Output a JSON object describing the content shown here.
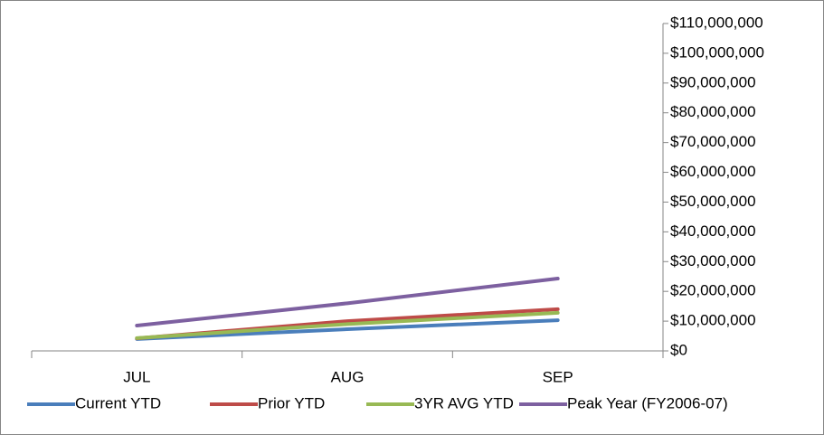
{
  "chart_data": {
    "type": "line",
    "categories": [
      "JUL",
      "AUG",
      "SEP"
    ],
    "series": [
      {
        "name": "Current YTD",
        "color": "#4a7ebb",
        "values": [
          4000000,
          7300000,
          10300000
        ]
      },
      {
        "name": "Prior YTD",
        "color": "#be4b48",
        "values": [
          4200000,
          10000000,
          14000000
        ]
      },
      {
        "name": "3YR AVG YTD",
        "color": "#98b954",
        "values": [
          4300000,
          9000000,
          12800000
        ]
      },
      {
        "name": "Peak Year (FY2006-07)",
        "color": "#7d60a0",
        "values": [
          8500000,
          16000000,
          24300000
        ]
      }
    ],
    "ylim": [
      0,
      110000000
    ],
    "yticks": [
      {
        "value": 0,
        "label": "$0"
      },
      {
        "value": 10000000,
        "label": "$10,000,000"
      },
      {
        "value": 20000000,
        "label": "$20,000,000"
      },
      {
        "value": 30000000,
        "label": "$30,000,000"
      },
      {
        "value": 40000000,
        "label": "$40,000,000"
      },
      {
        "value": 50000000,
        "label": "$50,000,000"
      },
      {
        "value": 60000000,
        "label": "$60,000,000"
      },
      {
        "value": 70000000,
        "label": "$70,000,000"
      },
      {
        "value": 80000000,
        "label": "$80,000,000"
      },
      {
        "value": 90000000,
        "label": "$90,000,000"
      },
      {
        "value": 100000000,
        "label": "$100,000,000"
      },
      {
        "value": 110000000,
        "label": "$110,000,000"
      }
    ],
    "y_axis_side": "right",
    "legend": "bottom"
  }
}
